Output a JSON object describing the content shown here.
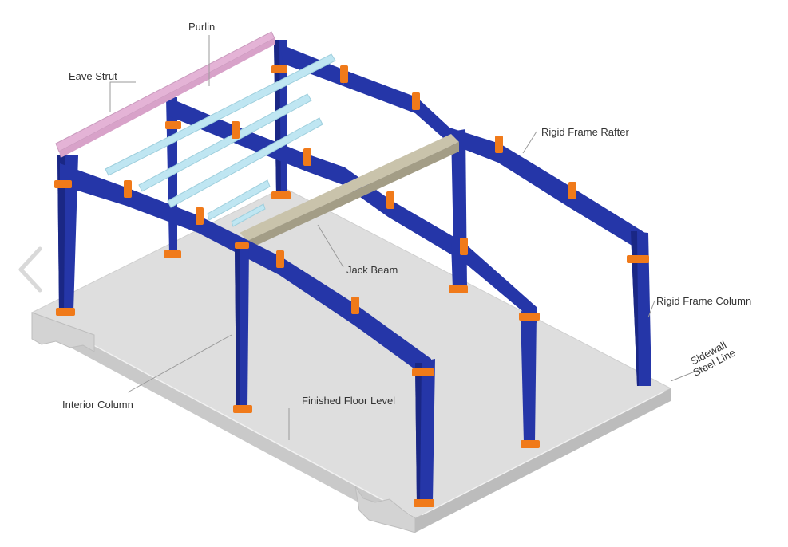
{
  "labels": {
    "purlin": "Purlin",
    "eave_strut": "Eave Strut",
    "rigid_frame_rafter": "Rigid Frame Rafter",
    "jack_beam": "Jack Beam",
    "rigid_frame_column": "Rigid Frame Column",
    "sidewall_line1": "Sidewall",
    "sidewall_line2": "Steel Line",
    "interior_column": "Interior Column",
    "finished_floor_level": "Finished Floor Level"
  },
  "icons": {
    "previous": "chevron-left-icon"
  },
  "colors": {
    "steel_frame": "#2536a8",
    "steel_frame_dark": "#1a2785",
    "connection_plate": "#f07a1a",
    "purlin": "#bfe6f2",
    "eave_strut": "#e4b3d6",
    "jack_beam": "#b8b29a",
    "slab": "#dcdcdc",
    "slab_edge": "#c4c4c4"
  }
}
